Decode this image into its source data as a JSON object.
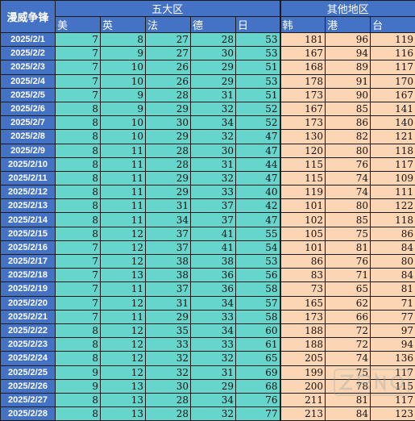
{
  "header": {
    "corner": "漫威争锋",
    "group1": "五大区",
    "group2": "其他地区",
    "columns": [
      "美",
      "英",
      "法",
      "德",
      "日",
      "韩",
      "港",
      "台"
    ]
  },
  "rows": [
    {
      "date": "2025/2/1",
      "values": [
        7,
        8,
        27,
        28,
        53,
        181,
        96,
        119
      ]
    },
    {
      "date": "2025/2/2",
      "values": [
        7,
        9,
        27,
        30,
        53,
        167,
        94,
        116
      ]
    },
    {
      "date": "2025/2/3",
      "values": [
        7,
        10,
        26,
        29,
        51,
        168,
        89,
        117
      ]
    },
    {
      "date": "2025/2/4",
      "values": [
        7,
        10,
        26,
        29,
        53,
        178,
        91,
        170
      ]
    },
    {
      "date": "2025/2/5",
      "values": [
        7,
        9,
        28,
        31,
        51,
        173,
        90,
        167
      ]
    },
    {
      "date": "2025/2/6",
      "values": [
        8,
        9,
        29,
        32,
        52,
        167,
        85,
        141
      ]
    },
    {
      "date": "2025/2/7",
      "values": [
        8,
        10,
        30,
        34,
        52,
        173,
        86,
        140
      ]
    },
    {
      "date": "2025/2/8",
      "values": [
        8,
        10,
        29,
        32,
        47,
        130,
        82,
        121
      ]
    },
    {
      "date": "2025/2/9",
      "values": [
        8,
        11,
        28,
        30,
        47,
        120,
        80,
        118
      ]
    },
    {
      "date": "2025/2/10",
      "values": [
        8,
        11,
        28,
        31,
        44,
        115,
        76,
        117
      ]
    },
    {
      "date": "2025/2/11",
      "values": [
        8,
        11,
        29,
        32,
        47,
        115,
        74,
        109
      ]
    },
    {
      "date": "2025/2/12",
      "values": [
        8,
        11,
        29,
        33,
        40,
        119,
        74,
        111
      ]
    },
    {
      "date": "2025/2/13",
      "values": [
        8,
        11,
        31,
        37,
        42,
        101,
        80,
        122
      ]
    },
    {
      "date": "2025/2/14",
      "values": [
        8,
        11,
        34,
        37,
        47,
        102,
        85,
        118
      ]
    },
    {
      "date": "2025/2/15",
      "values": [
        8,
        12,
        37,
        41,
        55,
        105,
        75,
        86
      ]
    },
    {
      "date": "2025/2/16",
      "values": [
        7,
        12,
        37,
        41,
        54,
        101,
        81,
        84
      ]
    },
    {
      "date": "2025/2/17",
      "values": [
        7,
        12,
        38,
        38,
        53,
        86,
        76,
        80
      ]
    },
    {
      "date": "2025/2/18",
      "values": [
        7,
        13,
        38,
        36,
        56,
        83,
        71,
        84
      ]
    },
    {
      "date": "2025/2/19",
      "values": [
        7,
        11,
        37,
        36,
        58,
        73,
        65,
        81
      ]
    },
    {
      "date": "2025/2/20",
      "values": [
        7,
        12,
        31,
        34,
        57,
        165,
        62,
        71
      ]
    },
    {
      "date": "2025/2/21",
      "values": [
        7,
        11,
        29,
        33,
        58,
        173,
        66,
        77
      ]
    },
    {
      "date": "2025/2/22",
      "values": [
        8,
        12,
        35,
        34,
        60,
        188,
        72,
        97
      ]
    },
    {
      "date": "2025/2/23",
      "values": [
        8,
        12,
        33,
        33,
        61,
        188,
        72,
        94
      ]
    },
    {
      "date": "2025/2/24",
      "values": [
        8,
        12,
        32,
        32,
        65,
        205,
        74,
        136
      ]
    },
    {
      "date": "2025/2/25",
      "values": [
        9,
        12,
        32,
        31,
        69,
        199,
        75,
        117
      ]
    },
    {
      "date": "2025/2/26",
      "values": [
        9,
        13,
        30,
        29,
        68,
        200,
        78,
        115
      ]
    },
    {
      "date": "2025/2/27",
      "values": [
        8,
        13,
        28,
        34,
        76,
        211,
        81,
        117
      ]
    },
    {
      "date": "2025/2/28",
      "values": [
        8,
        13,
        28,
        32,
        77,
        213,
        84,
        123
      ]
    }
  ],
  "colors": {
    "header_blue": "#4472c4",
    "five_regions_teal": "#66d5cc",
    "other_regions_peach": "#fcd5b4"
  }
}
